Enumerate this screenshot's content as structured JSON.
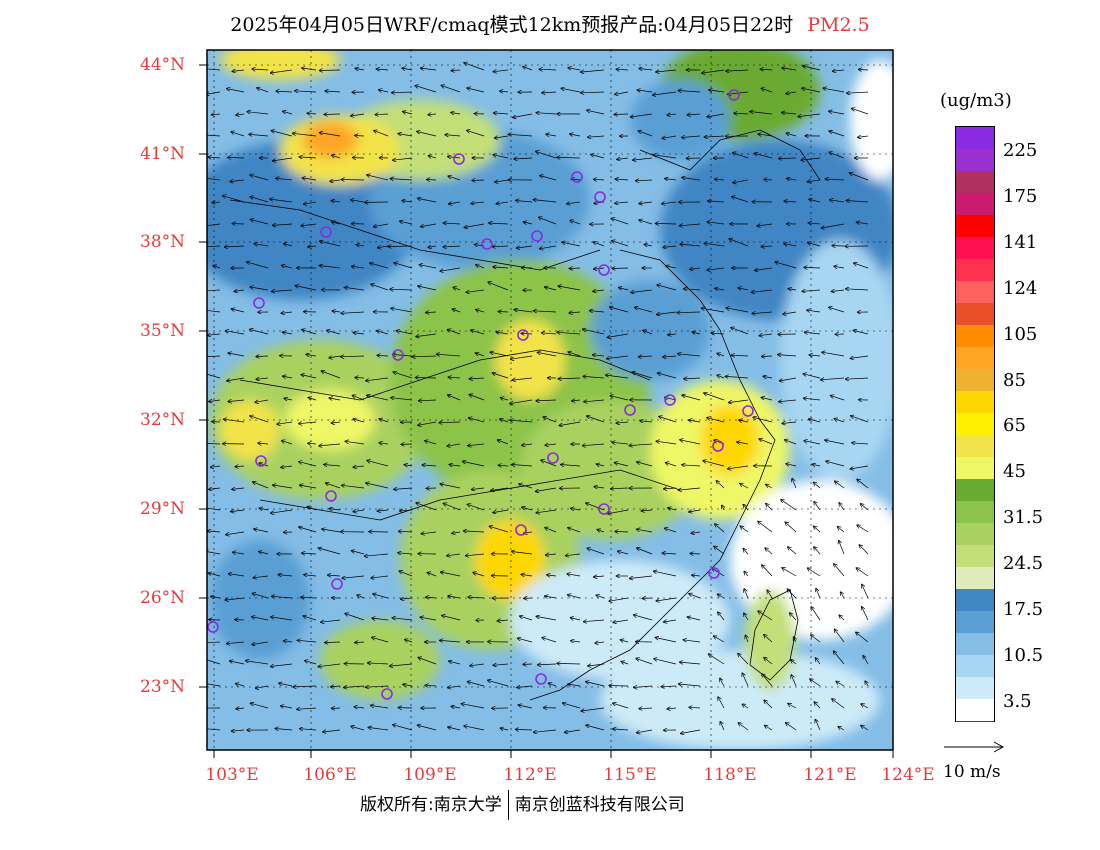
{
  "title": {
    "text": "2025年04月05日WRF/cmaq模式12km预报产品:04月05日22时",
    "pollutant": "PM2.5"
  },
  "latitude_labels": [
    "44°N",
    "41°N",
    "38°N",
    "35°N",
    "32°N",
    "29°N",
    "26°N",
    "23°N"
  ],
  "longitude_labels": [
    "103°E",
    "106°E",
    "109°E",
    "112°E",
    "115°E",
    "118°E",
    "121°E",
    "124°E"
  ],
  "colorbar": {
    "unit": "(ug/m3)",
    "labels": [
      "225",
      "175",
      "141",
      "124",
      "105",
      "85",
      "65",
      "45",
      "31.5",
      "24.5",
      "17.5",
      "10.5",
      "3.5"
    ],
    "colors": [
      "#8a2be2",
      "#9b30d0",
      "#b03060",
      "#cc1a6e",
      "#ff0000",
      "#ff1050",
      "#ff3050",
      "#ff6060",
      "#e8502a",
      "#ff8c00",
      "#ffa526",
      "#f0b030",
      "#ffd700",
      "#ffef00",
      "#f2e34a",
      "#eef766",
      "#6aaa33",
      "#8cc34a",
      "#a9d161",
      "#c3df78",
      "#e0eabb",
      "#3f86c4",
      "#5a9fd4",
      "#84bde6",
      "#a7d6f2",
      "#cdeaf8",
      "#ffffff"
    ]
  },
  "wind_reference": {
    "label": "10 m/s"
  },
  "credit": {
    "left": "版权所有:南京大学",
    "right": "南京创蓝科技有限公司"
  }
}
